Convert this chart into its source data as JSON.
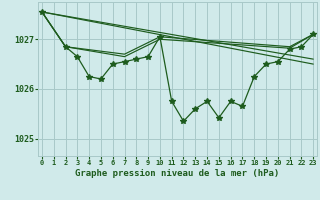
{
  "background_color": "#d0eaea",
  "grid_color": "#a8c8c8",
  "line_color": "#1e5c1e",
  "ylim": [
    1024.65,
    1027.75
  ],
  "yticks": [
    1025,
    1026,
    1027
  ],
  "xlim": [
    -0.3,
    23.3
  ],
  "xticks": [
    0,
    1,
    2,
    3,
    4,
    5,
    6,
    7,
    8,
    9,
    10,
    11,
    12,
    13,
    14,
    15,
    16,
    17,
    18,
    19,
    20,
    21,
    22,
    23
  ],
  "xlabel": "Graphe pression niveau de la mer (hPa)",
  "main_x": [
    0,
    2,
    3,
    4,
    5,
    6,
    7,
    8,
    9,
    10,
    11,
    12,
    13,
    14,
    15,
    16,
    17,
    18,
    19,
    20,
    21,
    22,
    23
  ],
  "main_y": [
    1027.55,
    1026.85,
    1026.65,
    1026.25,
    1026.2,
    1026.5,
    1026.55,
    1026.6,
    1026.65,
    1027.05,
    1025.75,
    1025.35,
    1025.6,
    1025.75,
    1025.42,
    1025.75,
    1025.65,
    1026.25,
    1026.5,
    1026.55,
    1026.8,
    1026.85,
    1027.1
  ],
  "smooth_lines": [
    {
      "x": [
        0,
        2,
        7,
        10,
        21,
        23
      ],
      "y": [
        1027.55,
        1026.85,
        1026.7,
        1027.05,
        1026.85,
        1027.1
      ]
    },
    {
      "x": [
        0,
        2,
        7,
        10,
        21,
        23
      ],
      "y": [
        1027.55,
        1026.85,
        1026.65,
        1027.0,
        1026.82,
        1027.1
      ]
    },
    {
      "x": [
        0,
        23
      ],
      "y": [
        1027.55,
        1026.6
      ]
    },
    {
      "x": [
        0,
        23
      ],
      "y": [
        1027.55,
        1026.5
      ]
    }
  ]
}
